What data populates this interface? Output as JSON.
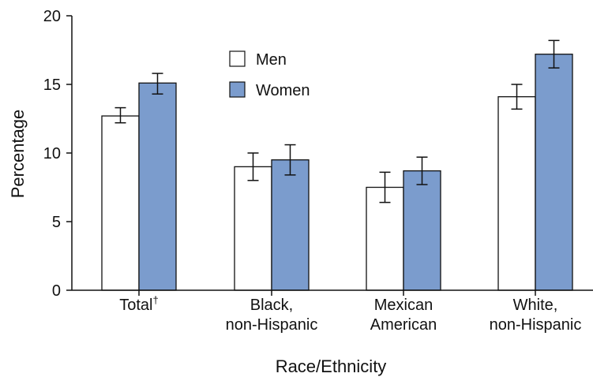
{
  "chart_data": {
    "type": "bar",
    "xlabel": "Race/Ethnicity",
    "ylabel": "Percentage",
    "ylim": [
      0,
      20
    ],
    "yticks": [
      0,
      5,
      10,
      15,
      20
    ],
    "grid": false,
    "legend": "top-left",
    "categories": [
      {
        "lines": [
          "Total"
        ],
        "sup": "†"
      },
      {
        "lines": [
          "Black,",
          "non-Hispanic"
        ]
      },
      {
        "lines": [
          "Mexican",
          "American"
        ]
      },
      {
        "lines": [
          "White,",
          "non-Hispanic"
        ]
      }
    ],
    "series": [
      {
        "name": "Men",
        "color": "#ffffff",
        "values": [
          12.7,
          9.0,
          7.5,
          14.1
        ],
        "err_low": [
          12.2,
          8.0,
          6.4,
          13.2
        ],
        "err_high": [
          13.3,
          10.0,
          8.6,
          15.0
        ]
      },
      {
        "name": "Women",
        "color": "#7b9ccd",
        "values": [
          15.1,
          9.5,
          8.7,
          17.2
        ],
        "err_low": [
          14.3,
          8.4,
          7.7,
          16.2
        ],
        "err_high": [
          15.8,
          10.6,
          9.7,
          18.2
        ]
      }
    ]
  }
}
